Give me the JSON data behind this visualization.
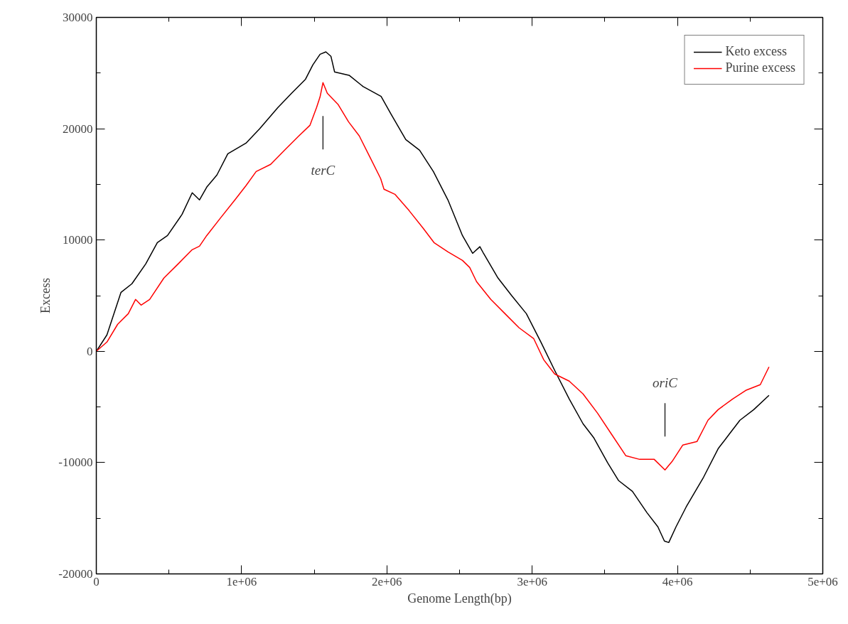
{
  "chart_data": {
    "type": "line",
    "xlabel": "Genome Length(bp)",
    "ylabel": "Excess",
    "xlim": [
      0,
      5000000
    ],
    "ylim": [
      -20000,
      30000
    ],
    "xticks": [
      0,
      {
        "value": 1000000,
        "label": "1e+06"
      },
      {
        "value": 2000000,
        "label": "2e+06"
      },
      {
        "value": 3000000,
        "label": "3e+06"
      },
      {
        "value": 4000000,
        "label": "4e+06"
      },
      {
        "value": 5000000,
        "label": "5e+06"
      }
    ],
    "yticks": [
      -20000,
      -10000,
      0,
      10000,
      20000,
      30000
    ],
    "grid": false,
    "legend": "top right",
    "line_style": "solid",
    "marker": "none",
    "series": [
      {
        "name": "Keto excess",
        "color": "#000000",
        "x": [
          0,
          73000,
          170000,
          245000,
          340000,
          420000,
          490000,
          590000,
          660000,
          710000,
          760000,
          830000,
          905000,
          1030000,
          1125000,
          1250000,
          1345000,
          1440000,
          1490000,
          1540000,
          1580000,
          1615000,
          1640000,
          1740000,
          1835000,
          1960000,
          2030000,
          2130000,
          2225000,
          2320000,
          2420000,
          2520000,
          2590000,
          2640000,
          2665000,
          2765000,
          2860000,
          2960000,
          3060000,
          3155000,
          3255000,
          3350000,
          3425000,
          3520000,
          3595000,
          3690000,
          3790000,
          3865000,
          3910000,
          3940000,
          3990000,
          4060000,
          4180000,
          4280000,
          4355000,
          4430000,
          4525000,
          4630000
        ],
        "values": [
          0,
          1470,
          5300,
          6070,
          7850,
          9770,
          10400,
          12300,
          14240,
          13600,
          14750,
          15840,
          17750,
          18700,
          20000,
          21900,
          23200,
          24450,
          25730,
          26690,
          26900,
          26500,
          25100,
          24800,
          23800,
          22900,
          21270,
          19030,
          18070,
          16150,
          13600,
          10400,
          8800,
          9400,
          8800,
          6580,
          4980,
          3380,
          830,
          -1720,
          -4280,
          -6510,
          -7790,
          -10030,
          -11620,
          -12580,
          -14500,
          -15770,
          -17050,
          -17180,
          -15770,
          -13980,
          -11300,
          -8750,
          -7470,
          -6190,
          -5240,
          -3960
        ]
      },
      {
        "name": "Purine excess",
        "color": "#ff0000",
        "x": [
          0,
          73000,
          147000,
          220000,
          270000,
          308000,
          367000,
          465000,
          563000,
          660000,
          710000,
          760000,
          856000,
          954000,
          1030000,
          1100000,
          1200000,
          1296000,
          1394000,
          1470000,
          1516000,
          1540000,
          1560000,
          1590000,
          1663000,
          1736000,
          1810000,
          1884000,
          1957000,
          1980000,
          2055000,
          2153000,
          2250000,
          2324000,
          2420000,
          2520000,
          2570000,
          2617000,
          2715000,
          2813000,
          2910000,
          3010000,
          3080000,
          3155000,
          3255000,
          3350000,
          3450000,
          3547000,
          3645000,
          3740000,
          3840000,
          3914000,
          3963000,
          4036000,
          4134000,
          4210000,
          4280000,
          4380000,
          4470000,
          4570000,
          4630000
        ],
        "values": [
          0,
          830,
          2430,
          3380,
          4660,
          4150,
          4660,
          6580,
          7850,
          9130,
          9450,
          10400,
          12000,
          13600,
          14880,
          16150,
          16800,
          18070,
          19350,
          20300,
          21900,
          22860,
          24140,
          23180,
          22200,
          20620,
          19350,
          17430,
          15520,
          14560,
          14110,
          12640,
          11050,
          9770,
          8940,
          8170,
          7530,
          6260,
          4660,
          3380,
          2110,
          1150,
          -770,
          -2040,
          -2680,
          -3830,
          -5560,
          -7470,
          -9390,
          -9710,
          -9710,
          -10660,
          -9900,
          -8430,
          -8110,
          -6190,
          -5240,
          -4280,
          -3510,
          -3000,
          -1400
        ]
      }
    ],
    "annotations": [
      "terC",
      "oriC"
    ]
  }
}
